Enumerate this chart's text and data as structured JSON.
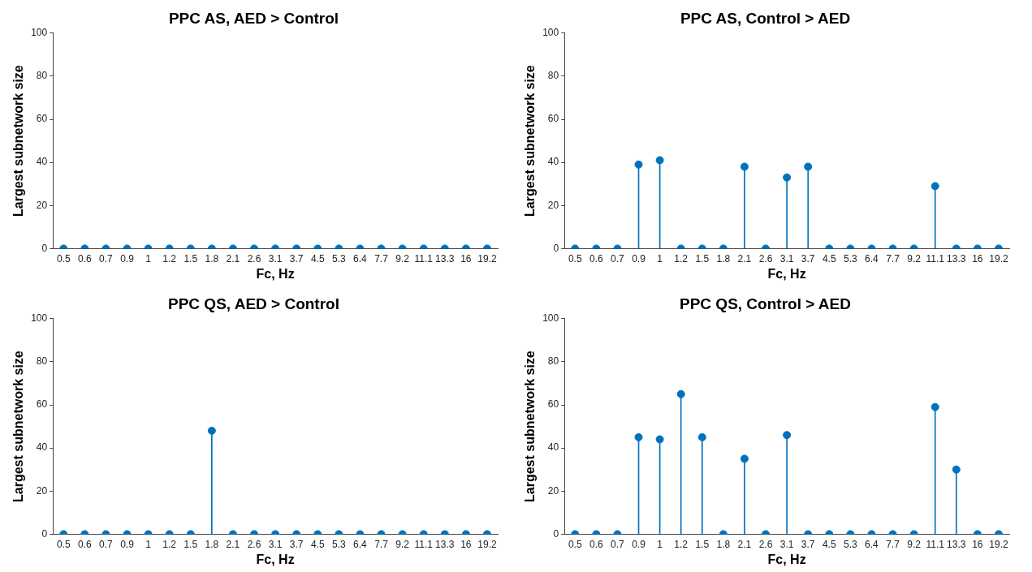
{
  "chart_data": [
    {
      "type": "lollipop",
      "title": "PPC AS, AED > Control",
      "xlabel": "Fc, Hz",
      "ylabel": "Largest subnetwork size",
      "categories": [
        "0.5",
        "0.6",
        "0.7",
        "0.9",
        "1",
        "1.2",
        "1.5",
        "1.8",
        "2.1",
        "2.6",
        "3.1",
        "3.7",
        "4.5",
        "5.3",
        "6.4",
        "7.7",
        "9.2",
        "11.1",
        "13.3",
        "16",
        "19.2"
      ],
      "values": [
        0,
        0,
        0,
        0,
        0,
        0,
        0,
        0,
        0,
        0,
        0,
        0,
        0,
        0,
        0,
        0,
        0,
        0,
        0,
        0,
        0
      ],
      "color": "#0072bd",
      "ylim": [
        0,
        100
      ],
      "yticks": [
        0,
        20,
        40,
        60,
        80,
        100
      ],
      "grid": false,
      "marker": "circle"
    },
    {
      "type": "lollipop",
      "title": "PPC AS, Control > AED",
      "xlabel": "Fc, Hz",
      "ylabel": "Largest subnetwork size",
      "categories": [
        "0.5",
        "0.6",
        "0.7",
        "0.9",
        "1",
        "1.2",
        "1.5",
        "1.8",
        "2.1",
        "2.6",
        "3.1",
        "3.7",
        "4.5",
        "5.3",
        "6.4",
        "7.7",
        "9.2",
        "11.1",
        "13.3",
        "16",
        "19.2"
      ],
      "values": [
        0,
        0,
        0,
        39,
        41,
        0,
        0,
        0,
        38,
        0,
        33,
        38,
        0,
        0,
        0,
        0,
        0,
        29,
        0,
        0,
        0
      ],
      "color": "#0072bd",
      "ylim": [
        0,
        100
      ],
      "yticks": [
        0,
        20,
        40,
        60,
        80,
        100
      ],
      "grid": false,
      "marker": "circle"
    },
    {
      "type": "lollipop",
      "title": "PPC QS, AED > Control",
      "xlabel": "Fc, Hz",
      "ylabel": "Largest subnetwork size",
      "categories": [
        "0.5",
        "0.6",
        "0.7",
        "0.9",
        "1",
        "1.2",
        "1.5",
        "1.8",
        "2.1",
        "2.6",
        "3.1",
        "3.7",
        "4.5",
        "5.3",
        "6.4",
        "7.7",
        "9.2",
        "11.1",
        "13.3",
        "16",
        "19.2"
      ],
      "values": [
        0,
        0,
        0,
        0,
        0,
        0,
        0,
        48,
        0,
        0,
        0,
        0,
        0,
        0,
        0,
        0,
        0,
        0,
        0,
        0,
        0
      ],
      "color": "#0072bd",
      "ylim": [
        0,
        100
      ],
      "yticks": [
        0,
        20,
        40,
        60,
        80,
        100
      ],
      "grid": false,
      "marker": "circle"
    },
    {
      "type": "lollipop",
      "title": "PPC QS, Control > AED",
      "xlabel": "Fc, Hz",
      "ylabel": "Largest subnetwork size",
      "categories": [
        "0.5",
        "0.6",
        "0.7",
        "0.9",
        "1",
        "1.2",
        "1.5",
        "1.8",
        "2.1",
        "2.6",
        "3.1",
        "3.7",
        "4.5",
        "5.3",
        "6.4",
        "7.7",
        "9.2",
        "11.1",
        "13.3",
        "16",
        "19.2"
      ],
      "values": [
        0,
        0,
        0,
        45,
        44,
        65,
        45,
        0,
        35,
        0,
        46,
        0,
        0,
        0,
        0,
        0,
        0,
        59,
        30,
        0,
        0
      ],
      "color": "#0072bd",
      "ylim": [
        0,
        100
      ],
      "yticks": [
        0,
        20,
        40,
        60,
        80,
        100
      ],
      "grid": false,
      "marker": "circle"
    }
  ]
}
